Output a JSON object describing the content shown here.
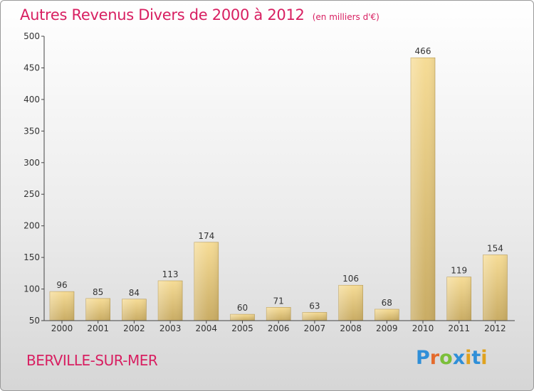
{
  "header": {
    "title": "Autres Revenus Divers de 2000 à 2012",
    "unit": "(en milliers d'€)"
  },
  "footer": {
    "commune": "BERVILLE-SUR-MER",
    "logo_text": "Proxiti"
  },
  "colors": {
    "title": "#d81f61",
    "bar_top": "#f6dc96",
    "bar_bottom": "#c9ac64",
    "axis": "#444444",
    "logo_letters": [
      "#2f8fd8",
      "#e46b2c",
      "#7bbf3a",
      "#2f8fd8",
      "#e0a21e",
      "#2f8fd8",
      "#e0a21e"
    ]
  },
  "chart_data": {
    "type": "bar",
    "title": "Autres Revenus Divers de 2000 à 2012",
    "subtitle": "(en milliers d'€)",
    "categories": [
      "2000",
      "2001",
      "2002",
      "2003",
      "2004",
      "2005",
      "2006",
      "2007",
      "2008",
      "2009",
      "2010",
      "2011",
      "2012"
    ],
    "values": [
      96,
      85,
      84,
      113,
      174,
      60,
      71,
      63,
      106,
      68,
      466,
      119,
      154
    ],
    "ylim": [
      50,
      500
    ],
    "yticks": [
      50,
      100,
      150,
      200,
      250,
      300,
      350,
      400,
      450,
      500
    ],
    "grid": false,
    "legend": false
  }
}
